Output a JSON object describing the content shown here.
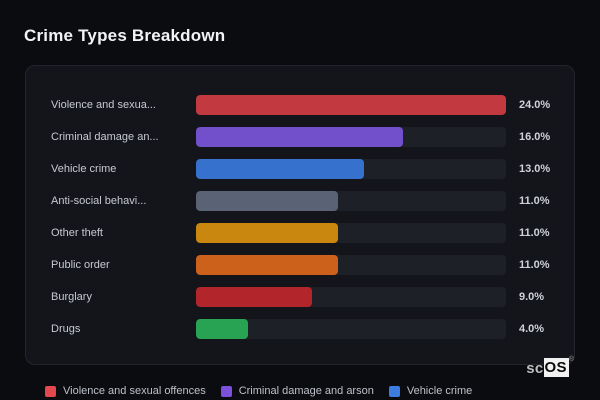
{
  "page": {
    "title": "Crime Types Breakdown",
    "background_color": "#0b0c10",
    "panel_color": "#14151b",
    "track_color": "#1e2027"
  },
  "chart_data": {
    "type": "bar",
    "orientation": "horizontal",
    "title": "Crime Types Breakdown",
    "categories": [
      "Violence and sexua...",
      "Criminal damage an...",
      "Vehicle crime",
      "Anti-social behavi...",
      "Other theft",
      "Public order",
      "Burglary",
      "Drugs"
    ],
    "values": [
      24.0,
      16.0,
      13.0,
      11.0,
      11.0,
      11.0,
      9.0,
      4.0
    ],
    "value_labels": [
      "24.0%",
      "16.0%",
      "13.0%",
      "11.0%",
      "11.0%",
      "11.0%",
      "9.0%",
      "4.0%"
    ],
    "bar_colors": [
      "#c23a40",
      "#7250cb",
      "#3672cd",
      "#5a6375",
      "#c9870f",
      "#cc611c",
      "#b2252a",
      "#27a353"
    ],
    "max_value": 24.0,
    "xlabel": "",
    "ylabel": "",
    "grid": false,
    "legend_position": "bottom",
    "legend": [
      {
        "label": "Violence and sexual offences",
        "color": "#e2484e"
      },
      {
        "label": "Criminal damage and arson",
        "color": "#7c52dd"
      },
      {
        "label": "Vehicle crime",
        "color": "#3b7de0"
      }
    ]
  },
  "logo": {
    "prefix": "sc",
    "suffix": "OS",
    "registered": "®"
  }
}
